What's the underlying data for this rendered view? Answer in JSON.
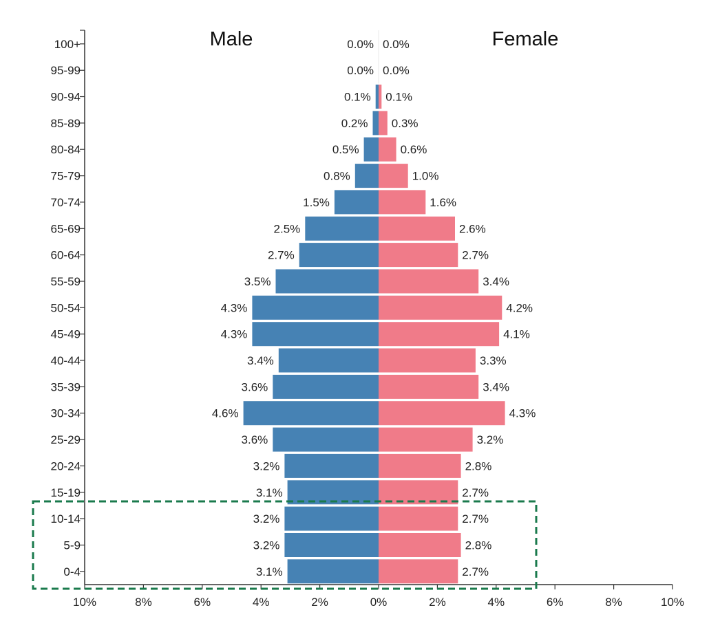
{
  "chart_data": {
    "type": "bar",
    "orientation": "horizontal-diverging",
    "title_left": "Male",
    "title_right": "Female",
    "categories": [
      "0-4",
      "5-9",
      "10-14",
      "15-19",
      "20-24",
      "25-29",
      "30-34",
      "35-39",
      "40-44",
      "45-49",
      "50-54",
      "55-59",
      "60-64",
      "65-69",
      "70-74",
      "75-79",
      "80-84",
      "85-89",
      "90-94",
      "95-99",
      "100+"
    ],
    "series": [
      {
        "name": "Male",
        "color": "#4682b4",
        "values": [
          3.1,
          3.2,
          3.2,
          3.1,
          3.2,
          3.6,
          4.6,
          3.6,
          3.4,
          4.3,
          4.3,
          3.5,
          2.7,
          2.5,
          1.5,
          0.8,
          0.5,
          0.2,
          0.1,
          0.0,
          0.0
        ],
        "labels": [
          "3.1%",
          "3.2%",
          "3.2%",
          "3.1%",
          "3.2%",
          "3.6%",
          "4.6%",
          "3.6%",
          "3.4%",
          "4.3%",
          "4.3%",
          "3.5%",
          "2.7%",
          "2.5%",
          "1.5%",
          "0.8%",
          "0.5%",
          "0.2%",
          "0.1%",
          "0.0%",
          "0.0%"
        ]
      },
      {
        "name": "Female",
        "color": "#f07b89",
        "values": [
          2.7,
          2.8,
          2.7,
          2.7,
          2.8,
          3.2,
          4.3,
          3.4,
          3.3,
          4.1,
          4.2,
          3.4,
          2.7,
          2.6,
          1.6,
          1.0,
          0.6,
          0.3,
          0.1,
          0.0,
          0.0
        ],
        "labels": [
          "2.7%",
          "2.8%",
          "2.7%",
          "2.7%",
          "2.8%",
          "3.2%",
          "4.3%",
          "3.4%",
          "3.3%",
          "4.1%",
          "4.2%",
          "3.4%",
          "2.7%",
          "2.6%",
          "1.6%",
          "1.0%",
          "0.6%",
          "0.3%",
          "0.1%",
          "0.0%",
          "0.0%"
        ]
      }
    ],
    "x_axis": {
      "ticks": [
        -10,
        -8,
        -6,
        -4,
        -2,
        0,
        2,
        4,
        6,
        8,
        10
      ],
      "tick_labels": [
        "10%",
        "8%",
        "6%",
        "4%",
        "2%",
        "0%",
        "2%",
        "4%",
        "6%",
        "8%",
        "10%"
      ],
      "xlim": [
        -10,
        10
      ]
    },
    "highlight": {
      "categories": [
        "0-4",
        "5-9",
        "10-14"
      ],
      "style": "dashed",
      "color": "#1a7a4c"
    }
  }
}
